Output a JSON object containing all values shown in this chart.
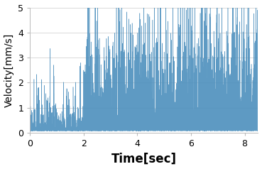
{
  "title": "",
  "xlabel": "Time[sec]",
  "ylabel": "Velocity[mm/s]",
  "xlim": [
    0,
    8.5
  ],
  "ylim": [
    0,
    5
  ],
  "xticks": [
    0,
    2,
    4,
    6,
    8
  ],
  "yticks": [
    0,
    1,
    2,
    3,
    4,
    5
  ],
  "line_color": "#4C8FBD",
  "background_color": "#ffffff",
  "grid_color": "#d9d9d9",
  "xlabel_fontsize": 12,
  "ylabel_fontsize": 10,
  "tick_fontsize": 9,
  "seed": 42,
  "n_points": 8500,
  "phase1_end": 2.0,
  "phase1_base": 0.07,
  "phase1_spike_scale": 0.55,
  "phase2_base": 0.07,
  "phase2_spike_scale": 1.3,
  "phase1_spike_prob": 0.18,
  "phase2_spike_prob": 0.35
}
